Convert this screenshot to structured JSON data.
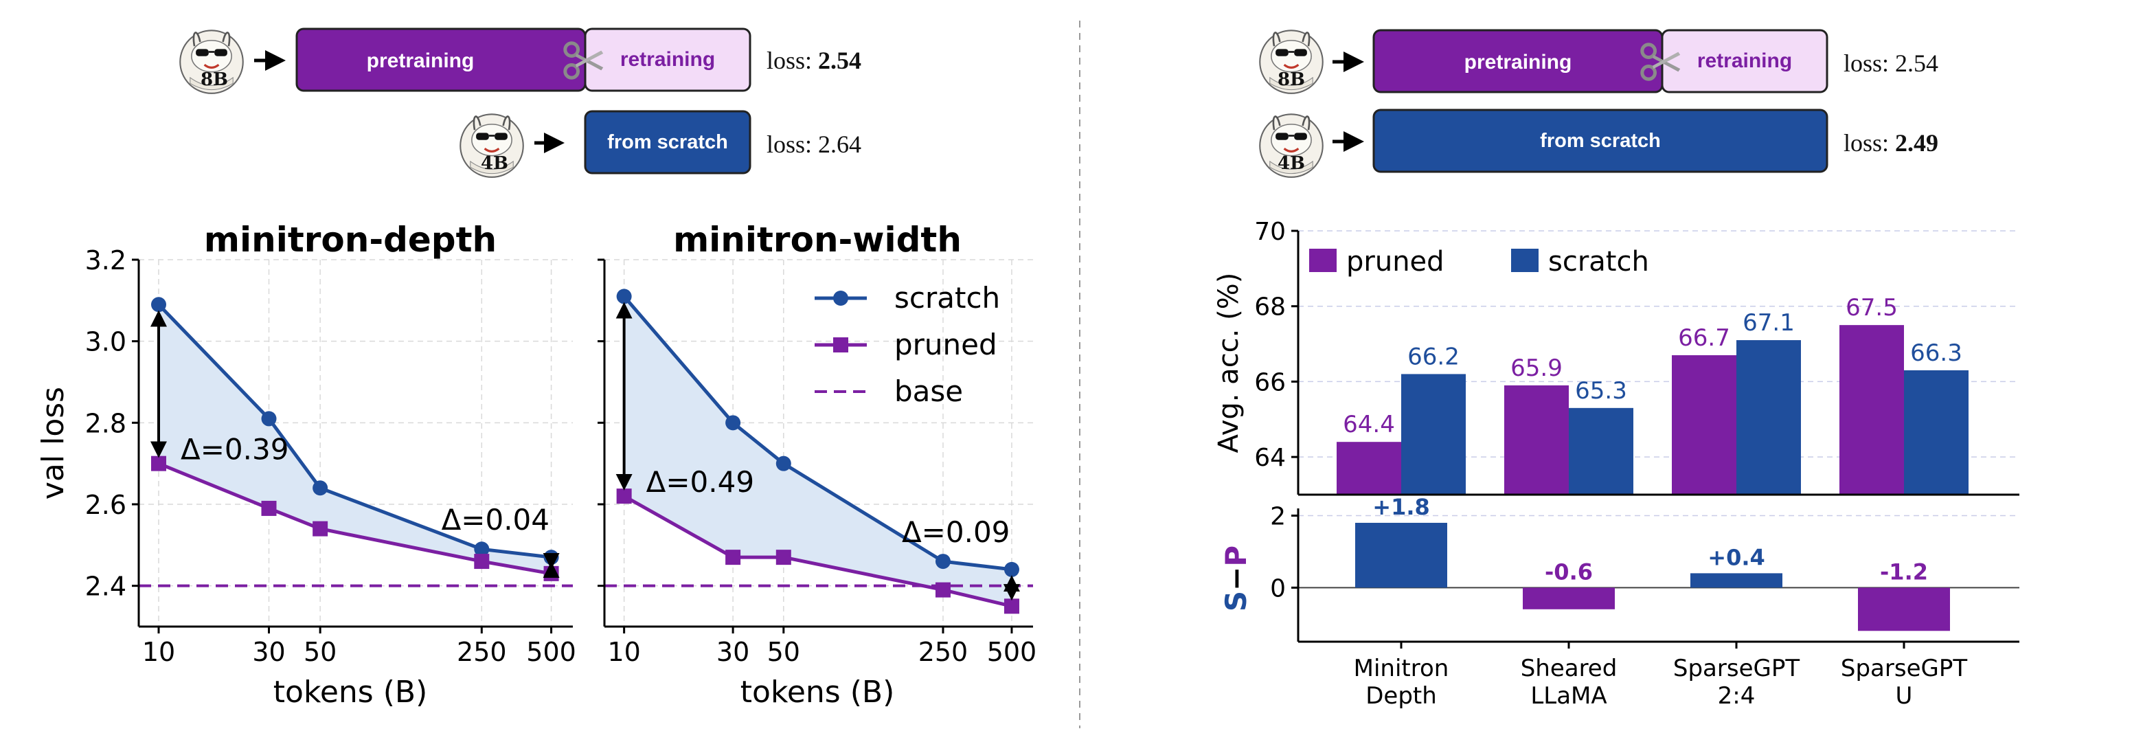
{
  "colors": {
    "purple": "#7b1fa2",
    "blue": "#1f4e9c",
    "light_purple_box": "#f3dcf8",
    "shade": "#dbe7f5",
    "grid": "#d9d9d9"
  },
  "icons": {
    "llama": "llama-with-sunglasses-icon",
    "scissors": "scissors-icon",
    "arrow": "arrow-right-icon"
  },
  "left_header": {
    "row1": {
      "badge": "8B",
      "box1": "pretraining",
      "box2": "retraining",
      "loss_label": "loss: ",
      "loss_value": "2.54"
    },
    "row2": {
      "badge": "4B",
      "box": "from scratch",
      "loss_label": "loss: ",
      "loss_value": "2.64"
    }
  },
  "right_header": {
    "row1": {
      "badge": "8B",
      "box1": "pretraining",
      "box2": "retraining",
      "loss_label": "loss: ",
      "loss_value": "2.54"
    },
    "row2": {
      "badge": "4B",
      "box": "from scratch",
      "loss_label": "loss: ",
      "loss_value": "2.49"
    }
  },
  "legend": {
    "scratch": "scratch",
    "pruned": "pruned",
    "base": "base"
  },
  "bar_legend": {
    "pruned": "pruned",
    "scratch": "scratch"
  },
  "chart_data": [
    {
      "type": "line",
      "title": "minitron-depth",
      "xlabel": "tokens (B)",
      "ylabel": "val loss",
      "xscale": "log",
      "xticks": [
        "10",
        "30",
        "50",
        "250",
        "500"
      ],
      "yticks": [
        "2.4",
        "2.6",
        "2.8",
        "3.0",
        "3.2"
      ],
      "ylim": [
        2.3,
        3.2
      ],
      "grid": true,
      "legend_position": "none",
      "x": [
        10,
        30,
        50,
        250,
        500
      ],
      "series": [
        {
          "name": "scratch",
          "values": [
            3.09,
            2.81,
            2.64,
            2.49,
            2.47
          ]
        },
        {
          "name": "pruned",
          "values": [
            2.7,
            2.59,
            2.54,
            2.46,
            2.43
          ]
        },
        {
          "name": "base",
          "values": [
            2.4,
            2.4,
            2.4,
            2.4,
            2.4
          ]
        }
      ],
      "annotations": [
        {
          "text": "Δ=0.39",
          "x": 10
        },
        {
          "text": "Δ=0.04",
          "x": 500
        }
      ]
    },
    {
      "type": "line",
      "title": "minitron-width",
      "xlabel": "tokens (B)",
      "ylabel": "",
      "xscale": "log",
      "xticks": [
        "10",
        "30",
        "50",
        "250",
        "500"
      ],
      "ylim": [
        2.3,
        3.2
      ],
      "grid": true,
      "legend_position": "top-right",
      "x": [
        10,
        30,
        50,
        250,
        500
      ],
      "series": [
        {
          "name": "scratch",
          "values": [
            3.11,
            2.8,
            2.7,
            2.46,
            2.44
          ]
        },
        {
          "name": "pruned",
          "values": [
            2.62,
            2.47,
            2.47,
            2.39,
            2.35
          ]
        },
        {
          "name": "base",
          "values": [
            2.4,
            2.4,
            2.4,
            2.4,
            2.4
          ]
        }
      ],
      "annotations": [
        {
          "text": "Δ=0.49",
          "x": 10
        },
        {
          "text": "Δ=0.09",
          "x": 500
        }
      ]
    },
    {
      "type": "bar",
      "ylabel": "Avg. acc. (%)",
      "yticks": [
        "64",
        "66",
        "68",
        "70"
      ],
      "ylim": [
        63.0,
        70.0
      ],
      "grid": true,
      "legend_position": "top-left",
      "categories": [
        "Minitron\nDepth",
        "Sheared\nLLaMA",
        "SparseGPT\n2:4",
        "SparseGPT\nU"
      ],
      "series": [
        {
          "name": "pruned",
          "values": [
            64.4,
            65.9,
            66.7,
            67.5
          ],
          "labels": [
            "64.4",
            "65.9",
            "66.7",
            "67.5"
          ]
        },
        {
          "name": "scratch",
          "values": [
            66.2,
            65.3,
            67.1,
            66.3
          ],
          "labels": [
            "66.2",
            "65.3",
            "67.1",
            "66.3"
          ]
        }
      ]
    },
    {
      "type": "bar",
      "ylabel": "S−P",
      "ylabel_parts": [
        "S",
        "−",
        "P"
      ],
      "yticks": [
        "0",
        "2"
      ],
      "ylim": [
        -1.5,
        2.2
      ],
      "grid": true,
      "categories": [
        "Minitron\nDepth",
        "Sheared\nLLaMA",
        "SparseGPT\n2:4",
        "SparseGPT\nU"
      ],
      "values": [
        1.8,
        -0.6,
        0.4,
        -1.2
      ],
      "labels": [
        "+1.8",
        "-0.6",
        "+0.4",
        "-1.2"
      ]
    }
  ]
}
